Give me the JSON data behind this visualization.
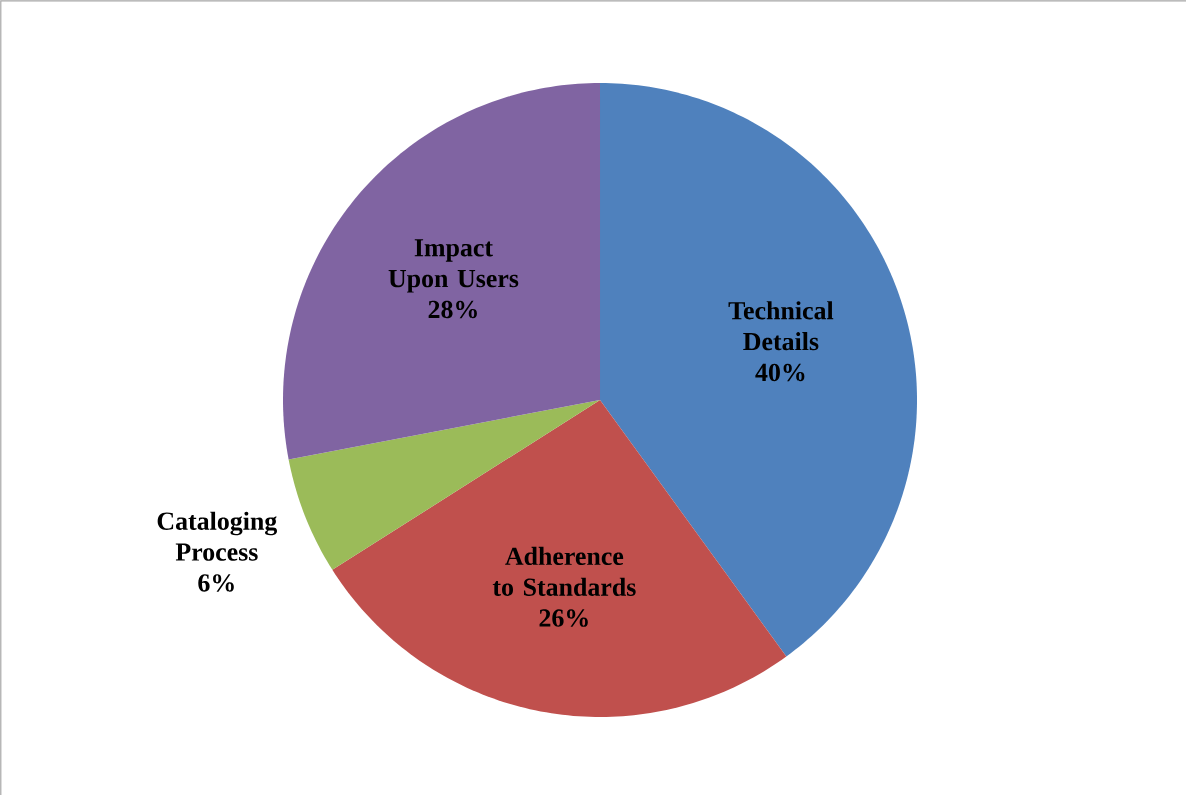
{
  "chart_data": {
    "type": "pie",
    "categories": [
      "Technical Details",
      "Adherence to Standards",
      "Cataloging Process",
      "Impact Upon Users"
    ],
    "values": [
      40,
      26,
      6,
      28
    ],
    "value_labels": [
      "40%",
      "26%",
      "6%",
      "28%"
    ],
    "colors": [
      "#4f81bd",
      "#c0504d",
      "#9bbb59",
      "#8064a2"
    ]
  }
}
